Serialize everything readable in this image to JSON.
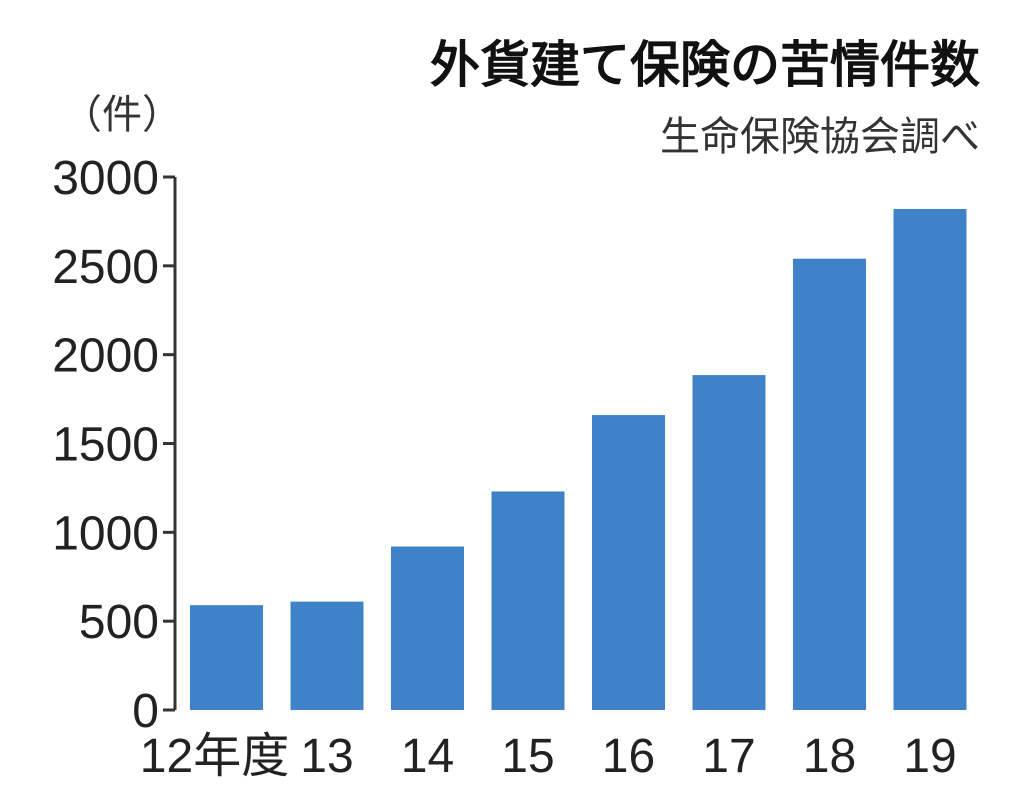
{
  "chart_data": {
    "type": "bar",
    "title": "外貨建て保険の苦情件数",
    "source": "生命保険協会調べ",
    "ylabel": "（件）",
    "categories": [
      "12年度",
      "13",
      "14",
      "15",
      "16",
      "17",
      "18",
      "19"
    ],
    "values": [
      590,
      610,
      920,
      1230,
      1660,
      1885,
      2540,
      2820
    ],
    "ylim": [
      0,
      3000
    ],
    "yticks": [
      0,
      500,
      1000,
      1500,
      2000,
      2500,
      3000
    ],
    "grid": false,
    "legend": "none",
    "bar_color": "#3f82c8",
    "axis_color": "#333333"
  }
}
